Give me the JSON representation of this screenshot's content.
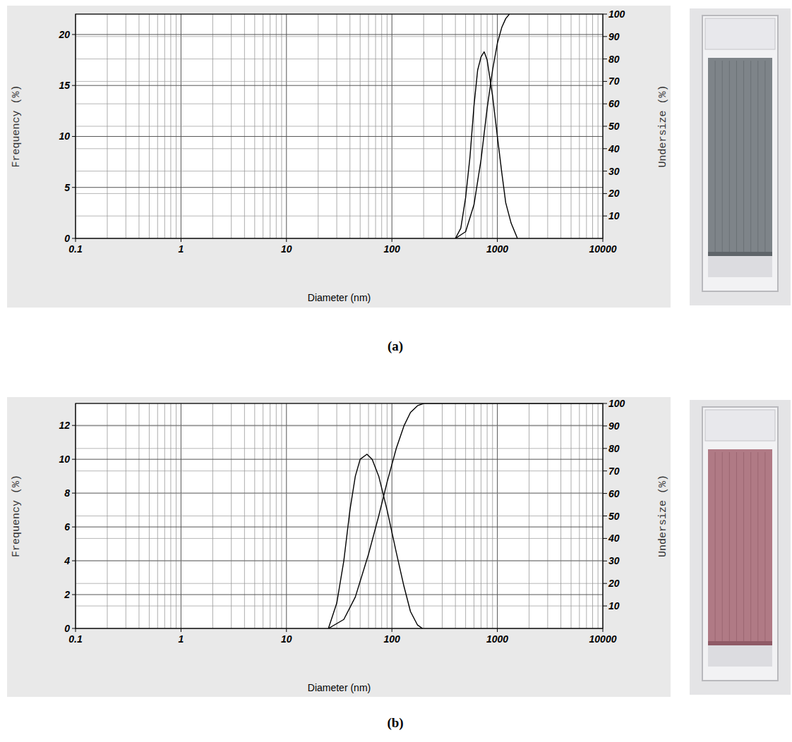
{
  "chart_data": [
    {
      "type": "line",
      "label": "(a)",
      "x_label": "Diameter (nm)",
      "y_label": "Frequency (%)",
      "y2_label": "Undersize (%)",
      "log": "x",
      "grid": true,
      "xlim": [
        0.1,
        10000
      ],
      "xticks": [
        0.1,
        1,
        10,
        100,
        1000,
        10000
      ],
      "ylim": [
        0,
        22
      ],
      "yticks": [
        0,
        5,
        10,
        15,
        20
      ],
      "y2lim": [
        0,
        100
      ],
      "y2ticks": [
        10,
        20,
        30,
        40,
        50,
        60,
        70,
        80,
        90,
        100
      ],
      "series": [
        {
          "color": "#000000",
          "x": [
            400,
            450,
            500,
            550,
            600,
            650,
            700,
            750,
            800,
            900,
            1000,
            1100,
            1200,
            1350,
            1550
          ],
          "values": [
            0,
            1,
            4,
            8,
            13,
            16.5,
            17.8,
            18.3,
            17.5,
            14,
            10,
            6.5,
            3.5,
            1.5,
            0
          ]
        },
        {
          "color": "#000000",
          "axis": "y2",
          "x": [
            400,
            500,
            600,
            700,
            800,
            900,
            1000,
            1100,
            1200,
            1300
          ],
          "values": [
            0,
            3,
            15,
            35,
            58,
            75,
            87,
            94,
            98,
            100
          ]
        }
      ]
    },
    {
      "type": "line",
      "label": "(b)",
      "x_label": "Diameter (nm)",
      "y_label": "Frequency (%)",
      "y2_label": "Undersize (%)",
      "log": "x",
      "grid": true,
      "xlim": [
        0.1,
        10000
      ],
      "xticks": [
        0.1,
        1,
        10,
        100,
        1000,
        10000
      ],
      "ylim": [
        0,
        13.3
      ],
      "yticks": [
        0,
        2,
        4,
        6,
        8,
        10,
        12
      ],
      "y2lim": [
        0,
        100
      ],
      "y2ticks": [
        10,
        20,
        30,
        40,
        50,
        60,
        70,
        80,
        90,
        100
      ],
      "series": [
        {
          "color": "#000000",
          "x": [
            25,
            30,
            35,
            40,
            45,
            50,
            58,
            65,
            75,
            90,
            110,
            130,
            150,
            175,
            195
          ],
          "values": [
            0,
            1.5,
            4,
            7,
            9,
            10,
            10.3,
            10,
            9,
            7,
            4.5,
            2.5,
            1,
            0.2,
            0
          ]
        },
        {
          "color": "#000000",
          "axis": "y2",
          "x": [
            25,
            35,
            45,
            60,
            75,
            90,
            110,
            130,
            150,
            175,
            200,
            500,
            1000,
            10000
          ],
          "values": [
            0,
            4,
            14,
            33,
            50,
            65,
            80,
            90,
            96,
            99,
            100,
            100,
            100,
            100
          ]
        }
      ]
    }
  ]
}
